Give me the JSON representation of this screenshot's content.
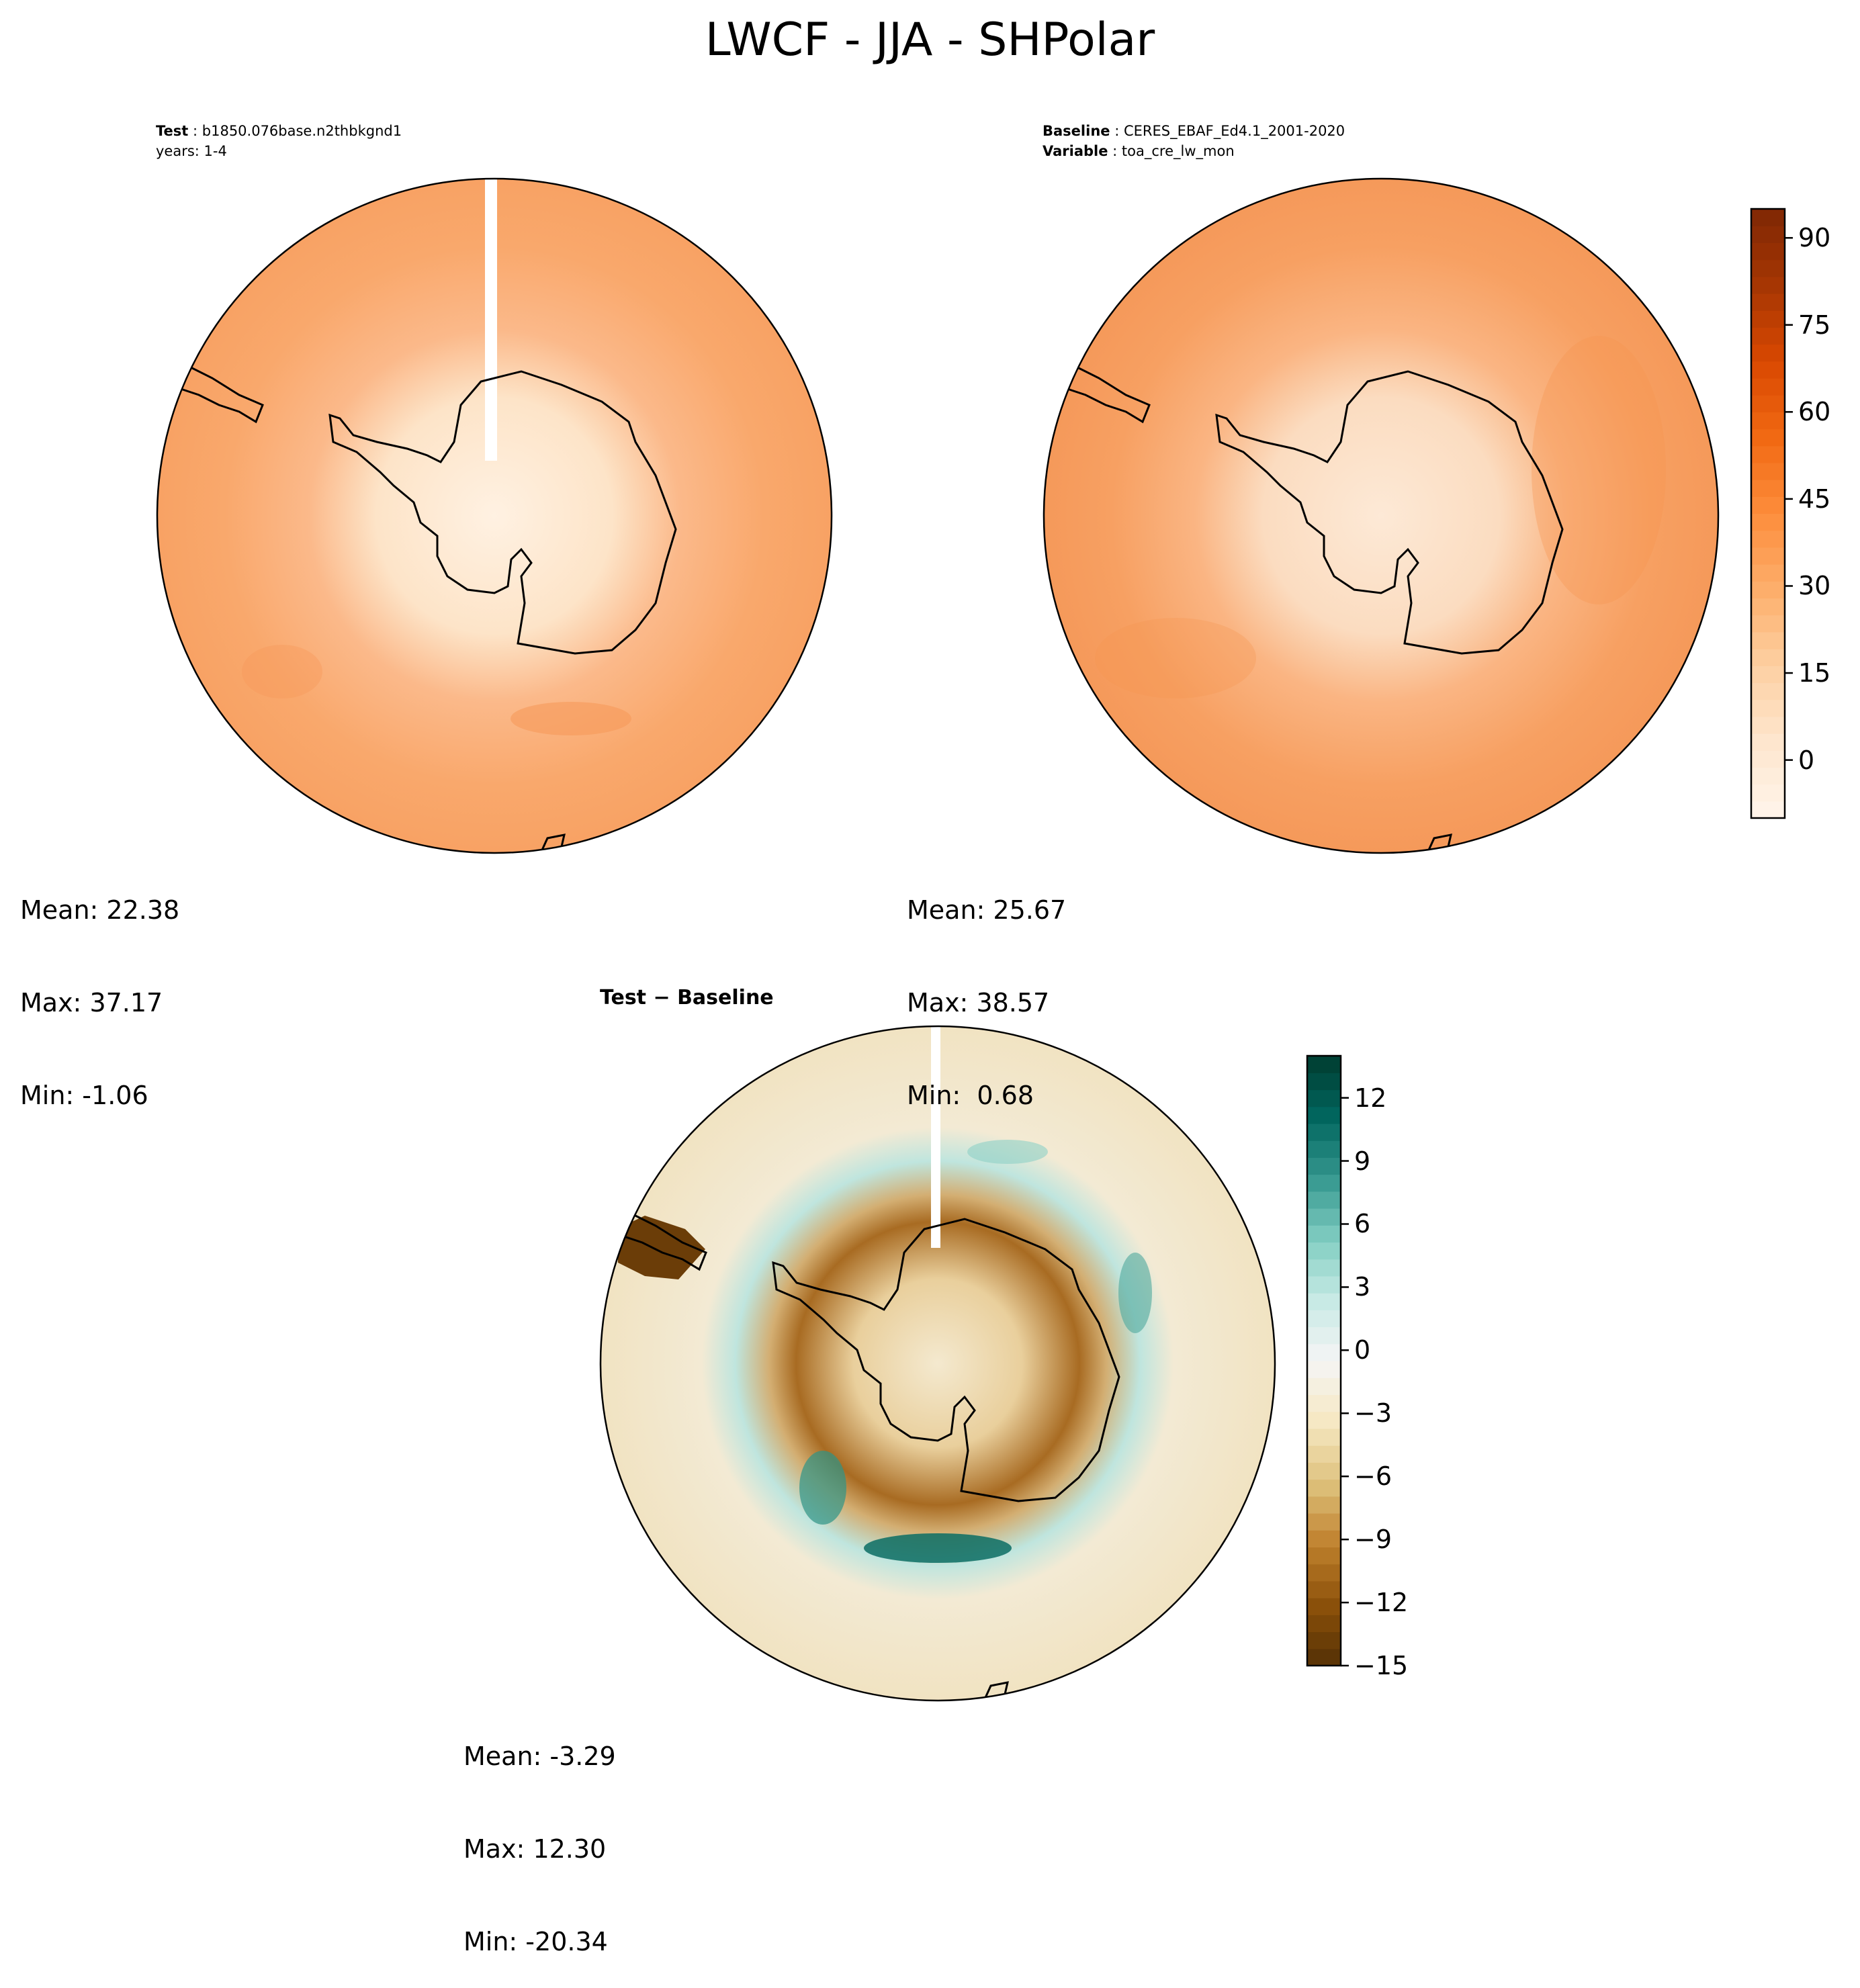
{
  "title": "LWCF - JJA - SHPolar",
  "test_panel": {
    "header_label": "Test",
    "header_value": "b1850.076base.n2thbkgnd1",
    "years": "years: 1-4",
    "stats": {
      "mean": "Mean: 22.38",
      "max": "Max: 37.17",
      "min": "Min: -1.06"
    }
  },
  "baseline_panel": {
    "header_label": "Baseline",
    "header_value": "CERES_EBAF_Ed4.1_2001-2020",
    "variable_label": "Variable",
    "variable_value": "toa_cre_lw_mon",
    "stats": {
      "mean": "Mean: 25.67",
      "max": "Max: 38.57",
      "min": "Min:  0.68"
    }
  },
  "diff_panel": {
    "title_left": "Test",
    "title_sep": " − ",
    "title_right": "Baseline",
    "stats": {
      "mean": "Mean: -3.29",
      "max": "Max: 12.30",
      "min": "Min: -20.34"
    }
  },
  "colorbar_main": {
    "ticks": [
      "90",
      "75",
      "60",
      "45",
      "30",
      "15",
      "0"
    ],
    "tick_values": [
      90,
      75,
      60,
      45,
      30,
      15,
      0
    ],
    "range": [
      -10,
      95
    ],
    "colors": [
      "#fff5eb",
      "#fee6ce",
      "#fdd0a2",
      "#fdae6b",
      "#fd8d3c",
      "#f16913",
      "#d94801",
      "#a63603",
      "#7f2704"
    ]
  },
  "colorbar_diff": {
    "ticks": [
      "12",
      "9",
      "6",
      "3",
      "0",
      "−3",
      "−6",
      "−9",
      "−12",
      "−15"
    ],
    "tick_values": [
      12,
      9,
      6,
      3,
      0,
      -3,
      -6,
      -9,
      -12,
      -15
    ],
    "range": [
      -15,
      14
    ],
    "colors": [
      "#543005",
      "#8c510a",
      "#bf812d",
      "#dfc27d",
      "#f6e8c3",
      "#f5f5f5",
      "#c7eae5",
      "#80cdc1",
      "#35978f",
      "#01665e",
      "#003c30"
    ]
  }
}
